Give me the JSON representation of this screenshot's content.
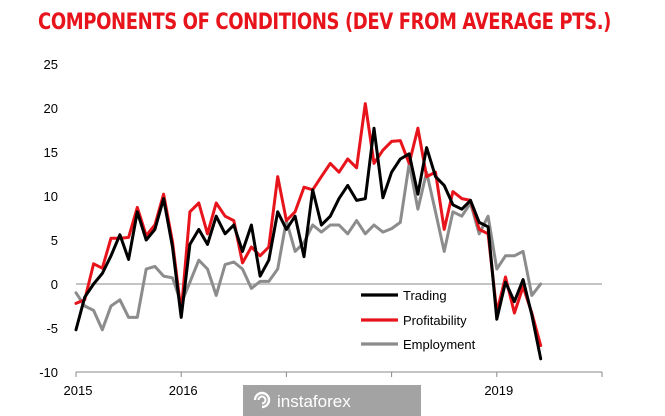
{
  "chart_data": {
    "type": "line",
    "title": "COMPONENTS OF CONDITIONS (DEV FROM AVERAGE PTS.)",
    "xlabel": "",
    "ylabel": "",
    "ylim": [
      -10,
      25
    ],
    "y_ticks": [
      "25",
      "20",
      "15",
      "10",
      "5",
      "0",
      "-5",
      "-10"
    ],
    "x_ticks": [
      {
        "label": "2015",
        "x": 2015.0
      },
      {
        "label": "2016",
        "x": 2016.0
      },
      {
        "label": "2019",
        "x": 2019.0
      }
    ],
    "xlim": [
      2015.0,
      2020.0
    ],
    "grid": false,
    "legend_position": "bottom-right",
    "x": [
      2015.0,
      2015.083,
      2015.167,
      2015.25,
      2015.333,
      2015.417,
      2015.5,
      2015.583,
      2015.667,
      2015.75,
      2015.833,
      2015.917,
      2016.0,
      2016.083,
      2016.167,
      2016.25,
      2016.333,
      2016.417,
      2016.5,
      2016.583,
      2016.667,
      2016.75,
      2016.833,
      2016.917,
      2017.0,
      2017.083,
      2017.167,
      2017.25,
      2017.333,
      2017.417,
      2017.5,
      2017.583,
      2017.667,
      2017.75,
      2017.833,
      2017.917,
      2018.0,
      2018.083,
      2018.167,
      2018.25,
      2018.333,
      2018.417,
      2018.5,
      2018.583,
      2018.667,
      2018.75,
      2018.833,
      2018.917,
      2019.0,
      2019.083,
      2019.167,
      2019.25,
      2019.333,
      2019.417
    ],
    "series": [
      {
        "name": "Trading",
        "color": "#000000",
        "values": [
          -5.2,
          -1.5,
          0,
          1.2,
          3.2,
          5.6,
          2.8,
          8.2,
          5,
          6.2,
          9.7,
          4.2,
          -3.8,
          4.5,
          6.2,
          4.5,
          7.7,
          5.7,
          6.7,
          3.7,
          6.7,
          0.9,
          2.7,
          8.2,
          6.2,
          7.7,
          3.1,
          10.7,
          6.7,
          7.7,
          9.7,
          11.2,
          9.5,
          9.7,
          17.7,
          9.8,
          12.7,
          14.2,
          14.8,
          10.2,
          15.5,
          12.2,
          11.2,
          9,
          8.5,
          9.5,
          7,
          6.5,
          -4,
          0.2,
          -2,
          0.5,
          -3.5,
          -8.5
        ]
      },
      {
        "name": "Profitability",
        "color": "#e8141c",
        "values": [
          -2.2,
          -1.8,
          2.3,
          1.8,
          5.2,
          5.2,
          5.3,
          8.7,
          5.5,
          6.7,
          10.2,
          4.8,
          -3.2,
          8.2,
          9.2,
          5.7,
          9.2,
          7.7,
          7.2,
          2.4,
          4.2,
          3.2,
          4.2,
          12.2,
          7.2,
          8.2,
          11,
          10.7,
          12.2,
          13.7,
          12.7,
          14.2,
          13.2,
          20.5,
          13.7,
          15.2,
          16.2,
          16.3,
          13.7,
          17.7,
          12.2,
          12.7,
          6.2,
          10.5,
          9.7,
          9.5,
          6.2,
          5.7,
          -3.2,
          0.8,
          -3.3,
          -0.3,
          -3.3,
          -7
        ]
      },
      {
        "name": "Employment",
        "color": "#8c8c8c",
        "values": [
          -1,
          -2.5,
          -3,
          -5.2,
          -2.5,
          -1.8,
          -3.8,
          -3.8,
          1.7,
          2,
          0.9,
          0.7,
          -2.2,
          0.2,
          2.7,
          1.7,
          -1.3,
          2.2,
          2.5,
          1.7,
          -0.5,
          0.3,
          0.3,
          1.7,
          7.2,
          3.7,
          4.7,
          6.7,
          5.9,
          6.7,
          6.7,
          5.7,
          7.2,
          5.7,
          6.7,
          5.9,
          6.3,
          7,
          13.7,
          8.5,
          12.7,
          8.2,
          3.7,
          8.2,
          7.7,
          9.2,
          5.7,
          7.7,
          1.7,
          3.2,
          3.2,
          3.7,
          -1.3,
          0
        ]
      }
    ]
  },
  "watermark": {
    "text": "instaforex",
    "bg_color": "#a3a3a3"
  }
}
